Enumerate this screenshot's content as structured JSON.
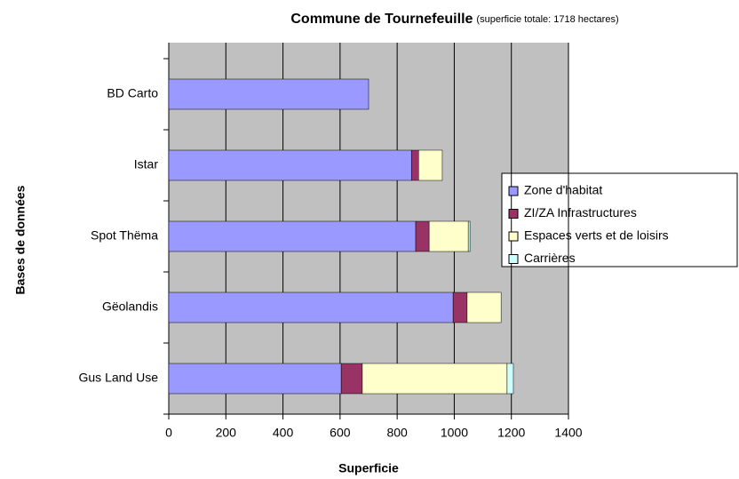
{
  "chart_data": {
    "type": "bar",
    "orientation": "horizontal",
    "stacked": true,
    "title": "Commune de Tournefeuille",
    "subtitle": "(superficie totale: 1718 hectares)",
    "x_label": "Superficie",
    "y_label": "Bases de données",
    "categories": [
      "BD Carto",
      "Istar",
      "Spot Thëma",
      "Gëolandis",
      "Gus Land Use"
    ],
    "series": [
      {
        "name": "Zone d'habitat",
        "color": "#9999ff",
        "values": [
          700,
          850,
          865,
          996,
          604
        ]
      },
      {
        "name": "ZI/ZA Infrastructures",
        "color": "#993366",
        "values": [
          0,
          25,
          47,
          49,
          74
        ]
      },
      {
        "name": "Espaces verts et de loisirs",
        "color": "#ffffcc",
        "values": [
          0,
          83,
          137,
          119,
          507
        ]
      },
      {
        "name": "Carrières",
        "color": "#ccffff",
        "values": [
          0,
          0,
          6,
          0,
          22
        ]
      }
    ],
    "xlim": [
      0,
      1400
    ],
    "xticks": [
      0,
      200,
      400,
      600,
      800,
      1000,
      1200,
      1400
    ],
    "grid": true,
    "legend": "right"
  }
}
